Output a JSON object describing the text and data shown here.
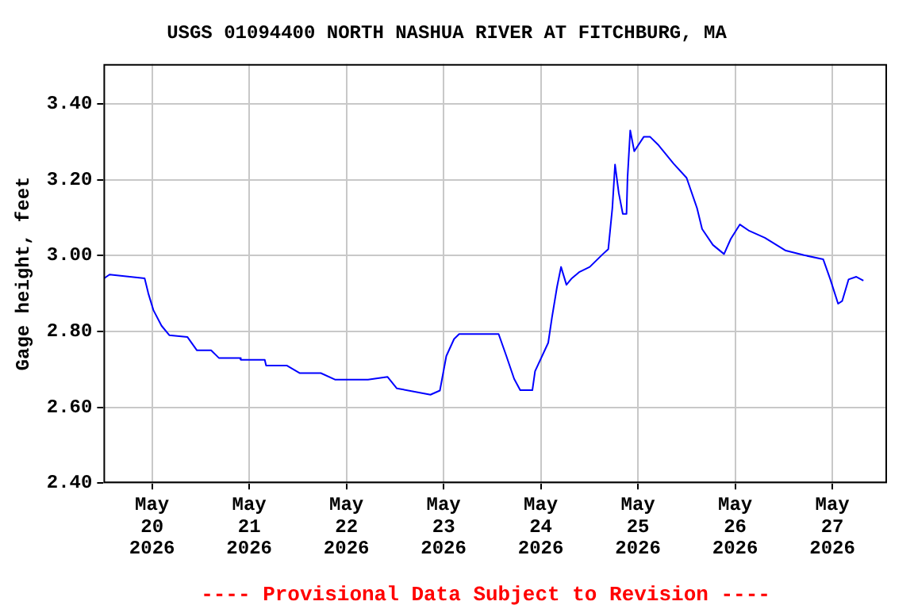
{
  "chart_data": {
    "type": "line",
    "title": "USGS 01094400 NORTH NASHUA RIVER AT FITCHBURG, MA",
    "ylabel": "Gage height, feet",
    "annotations": [
      "---- Provisional Data Subject to Revision ----"
    ],
    "x": [
      "2026-05-19T12:10",
      "2026-05-19T13:30",
      "2026-05-19T22:10",
      "2026-05-19T23:05",
      "2026-05-20T00:20",
      "2026-05-20T02:20",
      "2026-05-20T04:15",
      "2026-05-20T08:45",
      "2026-05-20T11:05",
      "2026-05-20T14:35",
      "2026-05-20T16:30",
      "2026-05-20T21:40",
      "2026-05-20T21:55",
      "2026-05-21T03:50",
      "2026-05-21T04:10",
      "2026-05-21T09:15",
      "2026-05-21T12:30",
      "2026-05-21T17:40",
      "2026-05-21T21:10",
      "2026-05-22T05:20",
      "2026-05-22T10:10",
      "2026-05-22T12:25",
      "2026-05-22T20:45",
      "2026-05-22T23:05",
      "2026-05-23T00:40",
      "2026-05-23T02:35",
      "2026-05-23T03:50",
      "2026-05-23T13:35",
      "2026-05-23T15:30",
      "2026-05-23T17:25",
      "2026-05-23T18:55",
      "2026-05-23T21:55",
      "2026-05-23T22:35",
      "2026-05-24T01:50",
      "2026-05-24T02:45",
      "2026-05-24T04:00",
      "2026-05-24T05:00",
      "2026-05-24T06:20",
      "2026-05-24T07:40",
      "2026-05-24T09:35",
      "2026-05-24T12:05",
      "2026-05-24T15:20",
      "2026-05-24T16:40",
      "2026-05-24T17:40",
      "2026-05-24T18:20",
      "2026-05-24T19:15",
      "2026-05-24T20:15",
      "2026-05-24T21:10",
      "2026-05-24T21:25",
      "2026-05-24T22:05",
      "2026-05-24T23:05",
      "2026-05-25T01:25",
      "2026-05-25T03:00",
      "2026-05-25T04:55",
      "2026-05-25T08:45",
      "2026-05-25T12:00",
      "2026-05-25T14:35",
      "2026-05-25T15:50",
      "2026-05-25T18:30",
      "2026-05-25T21:15",
      "2026-05-25T22:55",
      "2026-05-26T01:10",
      "2026-05-26T03:30",
      "2026-05-26T07:20",
      "2026-05-26T12:30",
      "2026-05-26T17:00",
      "2026-05-26T21:45",
      "2026-05-26T23:30",
      "2026-05-27T01:25",
      "2026-05-27T02:25",
      "2026-05-27T04:00",
      "2026-05-27T05:55",
      "2026-05-27T07:40"
    ],
    "series": [
      {
        "color": "#0000ff",
        "values": [
          2.94,
          2.95,
          2.94,
          2.9,
          2.856,
          2.815,
          2.79,
          2.785,
          2.75,
          2.75,
          2.73,
          2.73,
          2.725,
          2.725,
          2.71,
          2.71,
          2.69,
          2.69,
          2.673,
          2.673,
          2.68,
          2.65,
          2.633,
          2.644,
          2.735,
          2.78,
          2.793,
          2.793,
          2.735,
          2.675,
          2.645,
          2.645,
          2.695,
          2.77,
          2.836,
          2.917,
          2.97,
          2.923,
          2.94,
          2.957,
          2.97,
          3.004,
          3.017,
          3.125,
          3.24,
          3.165,
          3.11,
          3.11,
          3.205,
          3.33,
          3.275,
          3.313,
          3.313,
          3.293,
          3.243,
          3.205,
          3.125,
          3.07,
          3.028,
          3.004,
          3.044,
          3.082,
          3.065,
          3.047,
          3.013,
          3.001,
          2.99,
          2.937,
          2.873,
          2.88,
          2.937,
          2.944,
          2.934
        ]
      }
    ],
    "xlim": [
      "2026-05-19T12:00",
      "2026-05-27T13:30"
    ],
    "xticks": [
      {
        "value": "2026-05-20",
        "label": "May 20 2026"
      },
      {
        "value": "2026-05-21",
        "label": "May 21 2026"
      },
      {
        "value": "2026-05-22",
        "label": "May 22 2026"
      },
      {
        "value": "2026-05-23",
        "label": "May 23 2026"
      },
      {
        "value": "2026-05-24",
        "label": "May 24 2026"
      },
      {
        "value": "2026-05-25",
        "label": "May 25 2026"
      },
      {
        "value": "2026-05-26",
        "label": "May 26 2026"
      },
      {
        "value": "2026-05-27",
        "label": "May 27 2026"
      }
    ],
    "ylim": [
      2.4,
      3.505
    ],
    "yticks": [
      {
        "value": 2.4,
        "label": "2.40"
      },
      {
        "value": 2.6,
        "label": "2.60"
      },
      {
        "value": 2.8,
        "label": "2.80"
      },
      {
        "value": 3.0,
        "label": "3.00"
      },
      {
        "value": 3.2,
        "label": "3.20"
      },
      {
        "value": 3.4,
        "label": "3.40"
      }
    ],
    "grid": true,
    "legend": false,
    "marker": "none",
    "line_style": "solid"
  }
}
